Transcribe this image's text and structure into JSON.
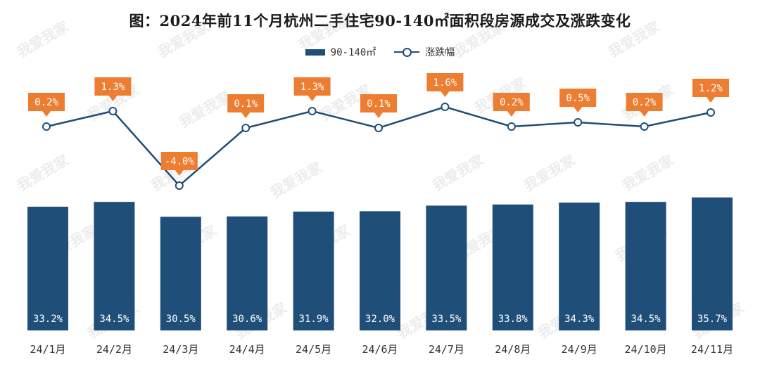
{
  "title": "图：2024年前11个月杭州二手住宅90-140㎡面积段房源成交及涨跌变化",
  "legend": {
    "bar_label": "90-140㎡",
    "line_label": "涨跌幅"
  },
  "watermark_text": "我爱我家",
  "colors": {
    "bar": "#1f4e79",
    "line": "#1f4e79",
    "label_box": "#ed7d31",
    "bar_label_text": "#ffffff",
    "line_label_text": "#ffffff"
  },
  "chart_data": {
    "type": "bar",
    "categories": [
      "24/1月",
      "24/2月",
      "24/3月",
      "24/4月",
      "24/5月",
      "24/6月",
      "24/7月",
      "24/8月",
      "24/9月",
      "24/10月",
      "24/11月"
    ],
    "series": [
      {
        "name": "90-140㎡",
        "type": "bar",
        "values": [
          33.2,
          34.5,
          30.5,
          30.6,
          31.9,
          32.0,
          33.5,
          33.8,
          34.3,
          34.5,
          35.7
        ],
        "labels": [
          "33.2%",
          "34.5%",
          "30.5%",
          "30.6%",
          "31.9%",
          "32.0%",
          "33.5%",
          "33.8%",
          "34.3%",
          "34.5%",
          "35.7%"
        ]
      },
      {
        "name": "涨跌幅",
        "type": "line",
        "values": [
          0.2,
          1.3,
          -4.0,
          0.1,
          1.3,
          0.1,
          1.6,
          0.2,
          0.5,
          0.2,
          1.2
        ],
        "labels": [
          "0.2%",
          "1.3%",
          "-4.0%",
          "0.1%",
          "1.3%",
          "0.1%",
          "1.6%",
          "0.2%",
          "0.5%",
          "0.2%",
          "1.2%"
        ]
      }
    ],
    "grid": false,
    "legend_position": "top-center"
  }
}
